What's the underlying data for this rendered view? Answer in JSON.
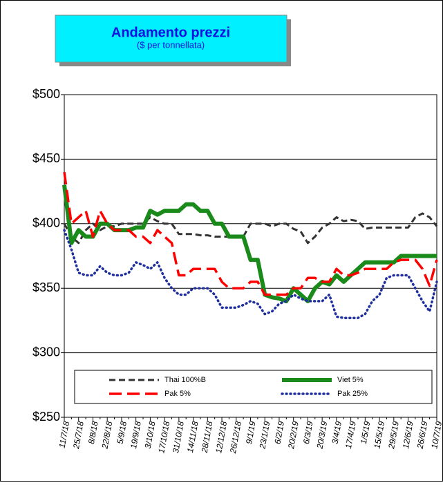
{
  "chart_data": {
    "type": "line",
    "title": "Andamento prezzi",
    "subtitle": "($ per tonnellata)",
    "categories": [
      "11/7/18",
      null,
      "25/7/18",
      null,
      "8/8/18",
      null,
      "22/8/18",
      null,
      "5/9/18",
      null,
      "19/9/18",
      null,
      "3/10/18",
      null,
      "17/10/18",
      null,
      "31/10/18",
      null,
      "14/11/18",
      null,
      "28/11/18",
      null,
      "12/12/18",
      null,
      "26/12/18",
      null,
      "9/1/19",
      null,
      "23/1/19",
      null,
      "6/2/19",
      null,
      "20/2/19",
      null,
      "6/3/19",
      null,
      "20/3/19",
      null,
      "3/4/19",
      null,
      "17/4/19",
      null,
      "1/5/19",
      null,
      "15/5/19",
      null,
      "29/5/19",
      null,
      "12/6/19",
      null,
      "26/6/19",
      null,
      "10/7/19"
    ],
    "series": [
      {
        "name": "Thai 100%B",
        "color": "#333333",
        "dash": "dashed",
        "values": [
          400,
          390,
          385,
          395,
          400,
          395,
          398,
          398,
          400,
          400,
          400,
          400,
          405,
          402,
          400,
          400,
          392,
          392,
          392,
          391,
          391,
          390,
          390,
          390,
          390,
          390,
          400,
          400,
          400,
          398,
          400,
          400,
          396,
          394,
          385,
          390,
          397,
          400,
          405,
          402,
          403,
          402,
          396,
          397,
          397,
          397,
          397,
          397,
          397,
          405,
          408,
          405,
          398
        ]
      },
      {
        "name": "Viet 5%",
        "color": "#1a8a1a",
        "dash": "solid",
        "values": [
          430,
          385,
          395,
          390,
          390,
          400,
          400,
          395,
          395,
          395,
          397,
          397,
          410,
          407,
          410,
          410,
          410,
          415,
          415,
          410,
          410,
          400,
          400,
          390,
          390,
          390,
          372,
          372,
          345,
          343,
          342,
          340,
          350,
          345,
          340,
          350,
          355,
          353,
          360,
          355,
          360,
          365,
          370,
          370,
          370,
          370,
          370,
          375,
          375,
          375,
          375,
          375,
          375
        ]
      },
      {
        "name": "Pak 5%",
        "color": "#ff0000",
        "dash": "longdash",
        "values": [
          440,
          400,
          405,
          410,
          390,
          410,
          400,
          395,
          395,
          395,
          390,
          390,
          385,
          395,
          390,
          385,
          360,
          360,
          365,
          365,
          365,
          365,
          355,
          350,
          350,
          350,
          355,
          355,
          345,
          345,
          345,
          345,
          350,
          350,
          358,
          358,
          355,
          355,
          365,
          360,
          360,
          362,
          365,
          365,
          365,
          365,
          370,
          372,
          372,
          372,
          365,
          352,
          372
        ]
      },
      {
        "name": "Pak 25%",
        "color": "#1f2f9f",
        "dash": "dotted",
        "values": [
          395,
          380,
          362,
          360,
          360,
          367,
          362,
          360,
          360,
          362,
          370,
          368,
          365,
          370,
          358,
          350,
          345,
          345,
          350,
          350,
          350,
          345,
          335,
          335,
          335,
          337,
          340,
          338,
          330,
          332,
          338,
          340,
          345,
          342,
          340,
          340,
          340,
          345,
          328,
          327,
          327,
          327,
          330,
          340,
          345,
          358,
          360,
          360,
          360,
          350,
          340,
          332,
          355
        ]
      }
    ],
    "ylim": [
      250,
      500
    ],
    "yticks": [
      {
        "value": 250,
        "label": "$250"
      },
      {
        "value": 300,
        "label": "$300"
      },
      {
        "value": 350,
        "label": "$350"
      },
      {
        "value": 400,
        "label": "$400"
      },
      {
        "value": 450,
        "label": "$450"
      },
      {
        "value": 500,
        "label": "$500"
      }
    ],
    "grid": true,
    "legend": "bottom"
  }
}
